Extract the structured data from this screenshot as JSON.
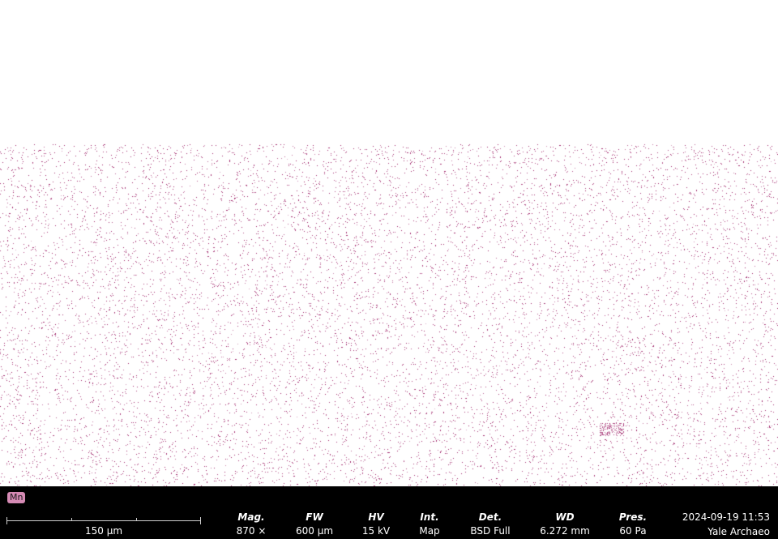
{
  "map": {
    "element": "Mn",
    "element_color": "#a0266b",
    "badge_color": "#d58ab4",
    "background": "#ffffff"
  },
  "scale_bar": {
    "label": "150 µm"
  },
  "parameters": [
    {
      "label": "Mag.",
      "value": "870 ×"
    },
    {
      "label": "FW",
      "value": "600 µm"
    },
    {
      "label": "HV",
      "value": "15 kV"
    },
    {
      "label": "Int.",
      "value": "Map"
    },
    {
      "label": "Det.",
      "value": "BSD Full"
    },
    {
      "label": "WD",
      "value": "6.272 mm"
    },
    {
      "label": "Pres.",
      "value": "60 Pa"
    }
  ],
  "datetime": "2024-09-19 11:53",
  "lab": "Yale Archaeo"
}
